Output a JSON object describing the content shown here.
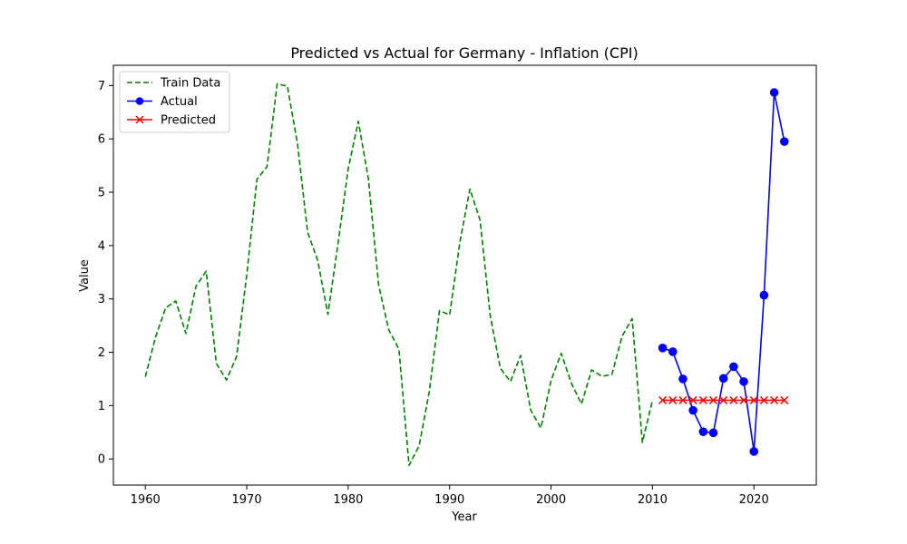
{
  "chart_data": {
    "type": "line",
    "title": "Predicted vs Actual for Germany - Inflation (CPI)",
    "xlabel": "Year",
    "ylabel": "Value",
    "xlim": [
      1956.85,
      2026.15
    ],
    "ylim": [
      -0.49,
      7.38
    ],
    "xticks": [
      1960,
      1970,
      1980,
      1990,
      2000,
      2010,
      2020
    ],
    "yticks": [
      0,
      1,
      2,
      3,
      4,
      5,
      6,
      7
    ],
    "grid": false,
    "legend_position": "top-left",
    "colors": {
      "train": "#008000",
      "actual": "#0000ff",
      "predicted": "#ff0000"
    },
    "series": [
      {
        "name": "Train Data",
        "style": "dashed",
        "x": [
          1960,
          1961,
          1962,
          1963,
          1964,
          1965,
          1966,
          1967,
          1968,
          1969,
          1970,
          1971,
          1972,
          1973,
          1974,
          1975,
          1976,
          1977,
          1978,
          1979,
          1980,
          1981,
          1982,
          1983,
          1984,
          1985,
          1986,
          1987,
          1988,
          1989,
          1990,
          1991,
          1992,
          1993,
          1994,
          1995,
          1996,
          1997,
          1998,
          1999,
          2000,
          2001,
          2002,
          2003,
          2004,
          2005,
          2006,
          2007,
          2008,
          2009,
          2010
        ],
        "values": [
          1.54,
          2.28,
          2.83,
          2.96,
          2.35,
          3.24,
          3.52,
          1.79,
          1.48,
          1.92,
          3.45,
          5.24,
          5.48,
          7.03,
          6.99,
          5.91,
          4.25,
          3.72,
          2.71,
          4.04,
          5.44,
          6.33,
          5.24,
          3.26,
          2.42,
          2.06,
          -0.12,
          0.25,
          1.27,
          2.78,
          2.7,
          4.05,
          5.06,
          4.48,
          2.69,
          1.7,
          1.45,
          1.94,
          0.91,
          0.58,
          1.47,
          1.98,
          1.42,
          1.03,
          1.67,
          1.55,
          1.58,
          2.3,
          2.63,
          0.31,
          1.1
        ]
      },
      {
        "name": "Actual",
        "style": "solid-marker-circle",
        "x": [
          2011,
          2012,
          2013,
          2014,
          2015,
          2016,
          2017,
          2018,
          2019,
          2020,
          2021,
          2022,
          2023
        ],
        "values": [
          2.08,
          2.01,
          1.5,
          0.91,
          0.51,
          0.49,
          1.51,
          1.73,
          1.45,
          0.14,
          3.07,
          6.87,
          5.95
        ]
      },
      {
        "name": "Predicted",
        "style": "solid-marker-x",
        "x": [
          2011,
          2012,
          2013,
          2014,
          2015,
          2016,
          2017,
          2018,
          2019,
          2020,
          2021,
          2022,
          2023
        ],
        "values": [
          1.1,
          1.1,
          1.1,
          1.1,
          1.1,
          1.1,
          1.1,
          1.1,
          1.1,
          1.1,
          1.1,
          1.1,
          1.1
        ]
      }
    ]
  }
}
